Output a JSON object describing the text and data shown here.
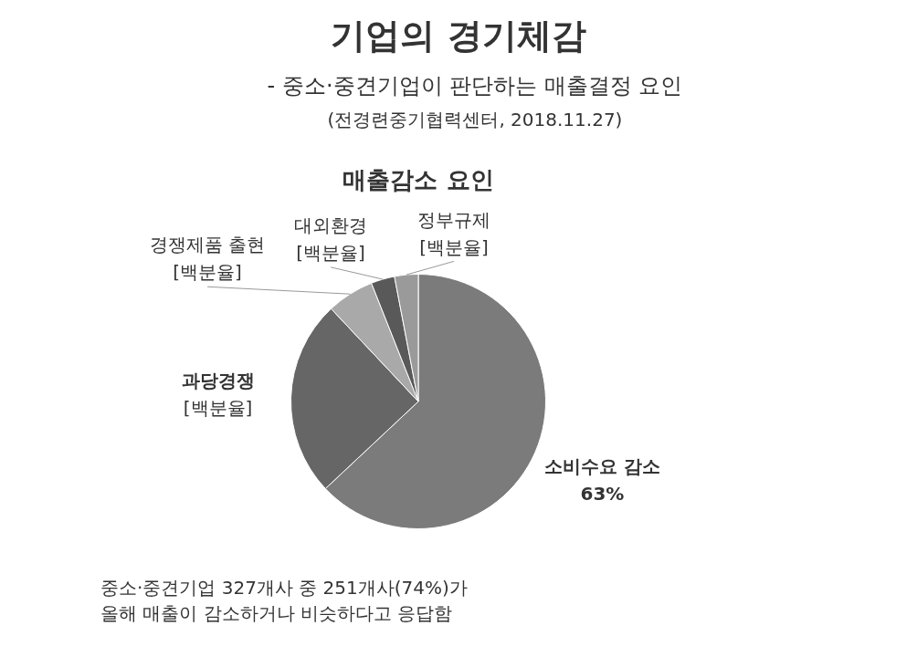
{
  "chart_data": {
    "type": "pie",
    "title": "기업의 경기체감",
    "subtitle": "- 중소·중견기업이 판단하는 매출결정 요인",
    "annotations": [
      "(전경련중기협력센터, 2018.11.27)",
      "매출감소 요인",
      "중소·중견기업 327개사 중 251개사(74%)가\n올해 매출이 감소하거나 비슷하다고 응답함"
    ],
    "categories": [
      "소비수요 감소",
      "과당경쟁",
      "경쟁제품 출현",
      "대외환경",
      "정부규제"
    ],
    "values": [
      63,
      25,
      6,
      3,
      3
    ],
    "value_labels": [
      "63%",
      "[백분율]",
      "[백분율]",
      "[백분율]",
      "[백분율]"
    ],
    "colors": [
      "#7b7b7b",
      "#666666",
      "#a9a9a9",
      "#595959",
      "#9a9a9a"
    ],
    "legend": false
  }
}
